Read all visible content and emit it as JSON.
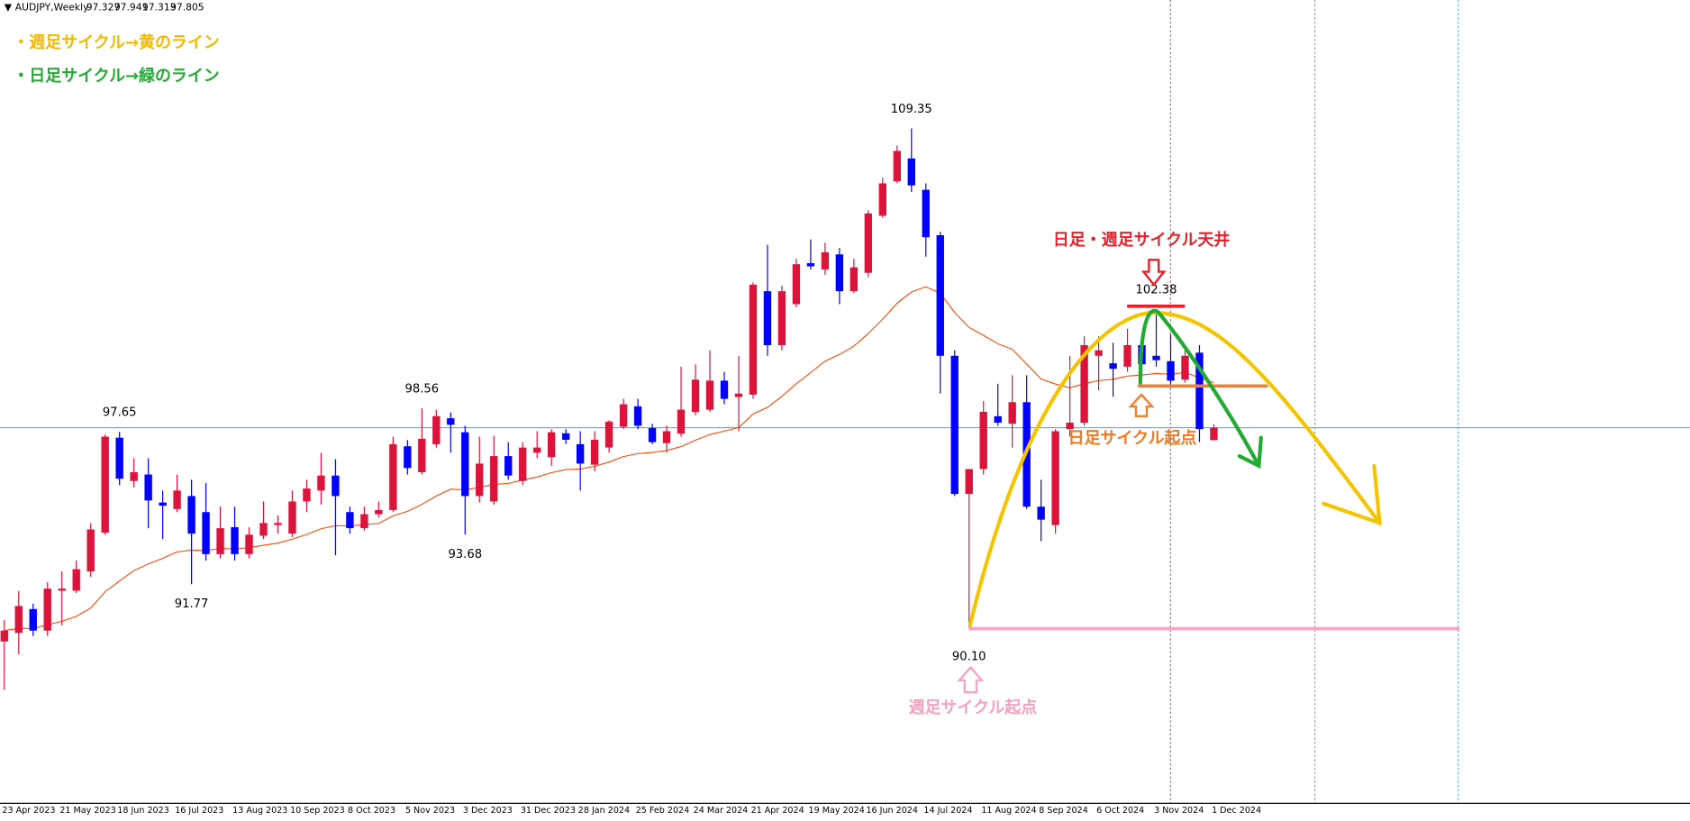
{
  "chart_data": {
    "type": "candlestick",
    "symbol": "AUDJPY,Weekly",
    "categories": [
      "23 Apr 2023",
      null,
      null,
      null,
      "21 May 2023",
      null,
      null,
      null,
      "18 Jun 2023",
      null,
      null,
      null,
      "16 Jul 2023",
      null,
      null,
      null,
      "13 Aug 2023",
      null,
      null,
      null,
      "10 Sep 2023",
      null,
      null,
      null,
      "8 Oct 2023",
      null,
      null,
      null,
      "5 Nov 2023",
      null,
      null,
      null,
      "3 Dec 2023",
      null,
      null,
      null,
      "31 Dec 2023",
      null,
      null,
      null,
      "28 Jan 2024",
      null,
      null,
      null,
      "25 Feb 2024",
      null,
      null,
      null,
      "24 Mar 2024",
      null,
      null,
      null,
      "21 Apr 2024",
      null,
      null,
      null,
      "19 May 2024",
      null,
      null,
      null,
      "16 Jun 2024",
      null,
      null,
      null,
      "14 Jul 2024",
      null,
      null,
      null,
      "11 Aug 2024",
      null,
      null,
      null,
      "8 Sep 2024",
      null,
      null,
      null,
      "6 Oct 2024",
      null,
      null,
      null,
      "3 Nov 2024",
      null,
      null,
      null,
      "1 Dec 2024"
    ],
    "ohlc": [
      [
        89.56,
        90.39,
        87.69,
        89.98
      ],
      [
        89.89,
        91.51,
        89.06,
        90.93
      ],
      [
        90.81,
        91.02,
        89.77,
        89.98
      ],
      [
        89.98,
        91.85,
        89.77,
        91.6
      ],
      [
        91.52,
        92.26,
        90.18,
        91.6
      ],
      [
        91.52,
        92.68,
        91.43,
        92.35
      ],
      [
        92.26,
        94.13,
        92.05,
        93.88
      ],
      [
        93.76,
        97.54,
        93.68,
        97.46
      ],
      [
        97.42,
        97.65,
        95.59,
        95.84
      ],
      [
        95.75,
        96.63,
        95.51,
        96.09
      ],
      [
        96.0,
        96.63,
        93.93,
        95.0
      ],
      [
        94.92,
        95.38,
        93.51,
        94.8
      ],
      [
        94.67,
        96.0,
        94.55,
        95.38
      ],
      [
        95.17,
        95.8,
        91.77,
        93.72
      ],
      [
        94.55,
        95.67,
        92.68,
        92.93
      ],
      [
        92.93,
        94.76,
        92.76,
        93.93
      ],
      [
        93.97,
        94.76,
        92.68,
        92.93
      ],
      [
        92.93,
        93.97,
        92.76,
        93.68
      ],
      [
        93.64,
        94.96,
        93.51,
        94.13
      ],
      [
        94.05,
        94.42,
        93.72,
        94.13
      ],
      [
        93.72,
        95.38,
        93.59,
        94.96
      ],
      [
        94.96,
        95.8,
        94.55,
        95.46
      ],
      [
        95.38,
        96.84,
        94.84,
        95.96
      ],
      [
        95.96,
        96.59,
        92.89,
        95.17
      ],
      [
        94.55,
        94.76,
        93.72,
        93.93
      ],
      [
        93.93,
        94.76,
        93.84,
        94.47
      ],
      [
        94.47,
        94.96,
        94.34,
        94.63
      ],
      [
        94.63,
        97.46,
        94.55,
        97.17
      ],
      [
        97.09,
        97.33,
        96.0,
        96.25
      ],
      [
        96.09,
        98.56,
        96.0,
        97.38
      ],
      [
        97.17,
        98.5,
        97.04,
        98.25
      ],
      [
        98.17,
        98.4,
        96.84,
        97.92
      ],
      [
        97.63,
        97.88,
        93.68,
        95.17
      ],
      [
        95.17,
        97.46,
        94.92,
        96.42
      ],
      [
        94.96,
        97.5,
        94.84,
        96.71
      ],
      [
        96.71,
        97.25,
        95.8,
        95.96
      ],
      [
        95.75,
        97.25,
        95.59,
        97.04
      ],
      [
        96.84,
        97.67,
        96.63,
        97.04
      ],
      [
        96.67,
        97.75,
        96.34,
        97.63
      ],
      [
        97.59,
        97.75,
        97.17,
        97.34
      ],
      [
        97.17,
        97.67,
        95.38,
        96.42
      ],
      [
        96.38,
        97.67,
        96.13,
        97.34
      ],
      [
        97.04,
        98.09,
        96.84,
        98.04
      ],
      [
        97.84,
        98.92,
        97.75,
        98.71
      ],
      [
        98.63,
        98.92,
        97.75,
        97.88
      ],
      [
        97.79,
        97.96,
        97.17,
        97.25
      ],
      [
        97.21,
        97.88,
        96.84,
        97.67
      ],
      [
        97.58,
        100.16,
        97.46,
        98.5
      ],
      [
        98.41,
        100.25,
        98.29,
        99.66
      ],
      [
        98.5,
        100.79,
        98.42,
        99.62
      ],
      [
        99.62,
        99.96,
        98.71,
        98.92
      ],
      [
        98.99,
        100.58,
        97.67,
        99.12
      ],
      [
        99.08,
        103.41,
        98.92,
        103.32
      ],
      [
        103.07,
        104.86,
        100.58,
        100.99
      ],
      [
        100.99,
        103.28,
        100.79,
        103.07
      ],
      [
        102.57,
        104.32,
        102.45,
        104.11
      ],
      [
        104.15,
        105.07,
        103.91,
        104.03
      ],
      [
        103.91,
        104.94,
        103.7,
        104.57
      ],
      [
        104.49,
        104.74,
        102.57,
        103.07
      ],
      [
        103.07,
        104.32,
        102.99,
        103.99
      ],
      [
        103.78,
        106.19,
        103.61,
        106.07
      ],
      [
        105.98,
        107.44,
        105.9,
        107.23
      ],
      [
        107.31,
        108.69,
        107.23,
        108.48
      ],
      [
        108.19,
        109.35,
        106.9,
        107.15
      ],
      [
        106.98,
        107.23,
        104.4,
        105.15
      ],
      [
        105.23,
        105.36,
        99.12,
        100.58
      ],
      [
        100.58,
        100.79,
        95.17,
        95.25
      ],
      [
        95.25,
        96.21,
        90.1,
        96.21
      ],
      [
        96.21,
        98.83,
        96.0,
        98.42
      ],
      [
        98.25,
        99.5,
        97.88,
        98.0
      ],
      [
        97.96,
        99.83,
        97.04,
        98.79
      ],
      [
        98.79,
        99.83,
        94.67,
        94.76
      ],
      [
        94.76,
        95.8,
        93.43,
        94.26
      ],
      [
        94.05,
        97.75,
        93.72,
        97.67
      ],
      [
        97.75,
        100.58,
        97.46,
        98.0
      ],
      [
        98.0,
        101.33,
        97.88,
        100.99
      ],
      [
        100.58,
        101.33,
        99.25,
        100.79
      ],
      [
        100.29,
        101.08,
        99.0,
        100.08
      ],
      [
        100.16,
        101.62,
        99.96,
        100.99
      ],
      [
        100.99,
        101.33,
        99.75,
        100.25
      ],
      [
        100.58,
        102.38,
        100.16,
        100.41
      ],
      [
        100.37,
        101.41,
        99.33,
        99.62
      ],
      [
        99.66,
        100.79,
        99.54,
        100.58
      ],
      [
        100.7,
        100.99,
        97.25,
        97.75
      ],
      [
        97.327,
        97.941,
        97.313,
        97.805
      ]
    ],
    "high_labels": [
      null,
      null,
      null,
      null,
      null,
      null,
      null,
      null,
      "97.65",
      null,
      null,
      null,
      null,
      null,
      null,
      null,
      null,
      null,
      null,
      null,
      null,
      null,
      null,
      null,
      null,
      null,
      null,
      null,
      null,
      "98.56",
      null,
      null,
      null,
      null,
      null,
      null,
      null,
      null,
      null,
      null,
      null,
      null,
      null,
      null,
      null,
      null,
      null,
      null,
      null,
      null,
      null,
      null,
      null,
      null,
      null,
      null,
      null,
      null,
      null,
      null,
      null,
      null,
      null,
      "109.35",
      null,
      null,
      null,
      null,
      null,
      null,
      null,
      null,
      null,
      null,
      null,
      null,
      null,
      null,
      null,
      null,
      "102.38",
      null,
      null,
      null,
      null
    ],
    "low_labels": [
      null,
      null,
      null,
      null,
      null,
      null,
      null,
      null,
      null,
      null,
      null,
      null,
      null,
      "91.77",
      null,
      null,
      null,
      null,
      null,
      null,
      null,
      null,
      null,
      null,
      null,
      null,
      null,
      null,
      null,
      null,
      null,
      null,
      "93.68",
      null,
      null,
      null,
      null,
      null,
      null,
      null,
      null,
      null,
      null,
      null,
      null,
      null,
      null,
      null,
      null,
      null,
      null,
      null,
      null,
      null,
      null,
      null,
      null,
      null,
      null,
      null,
      null,
      null,
      null,
      null,
      null,
      null,
      null,
      "90.10",
      null,
      null,
      null,
      null,
      null,
      null,
      null,
      null,
      null,
      null,
      null,
      null,
      null,
      null,
      null,
      null,
      null
    ],
    "up_color": "#dc143c",
    "down_color": "#0000ff",
    "ma_color": "#ff4500",
    "price_line_color": "#7b8ea6",
    "ylim": [
      83.32,
      114.3
    ],
    "annotations": {
      "weekly_legend": "・週足サイクル→黄のライン",
      "daily_legend": "・日足サイクル→緑のライン",
      "top_label": "日足・週足サイクル天井",
      "daily_start": "日足サイクル起点",
      "weekly_start": "週足サイクル起点"
    }
  }
}
